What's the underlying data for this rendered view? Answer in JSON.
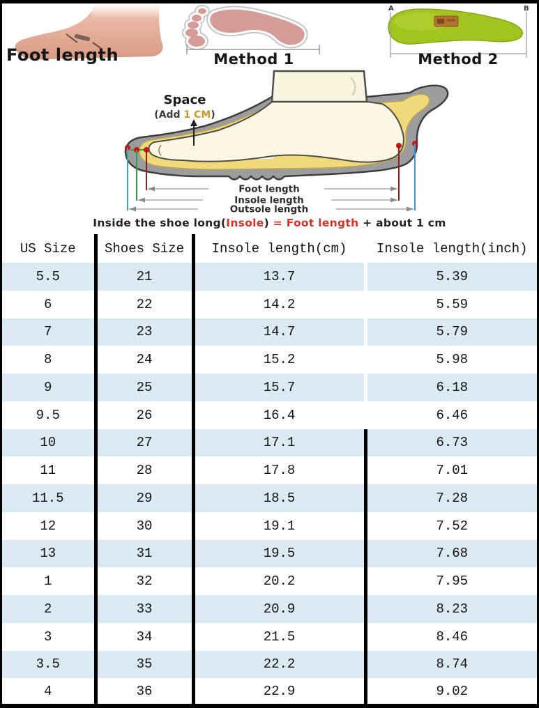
{
  "header_panels": {
    "foot_photo": {
      "label": "Foot length"
    },
    "method1": {
      "label": "Method 1"
    },
    "method2": {
      "label": "Method 2",
      "marker_a": "A",
      "marker_b": "B"
    }
  },
  "diagram": {
    "space_label": "Space",
    "space_note_prefix": "(Add ",
    "space_note_value": "1 CM",
    "space_note_suffix": ")",
    "measure_labels": [
      "Foot length",
      "Insole length",
      "Outsole length"
    ],
    "colors": {
      "shoe_gray": "#9c9c9c",
      "insole_yellow": "#f0d97b",
      "foot_cream": "#fbf7e2",
      "marker_red": "#cc1515",
      "outsole_line_left": "#2fb0ad",
      "insole_line_left": "#2f9e44",
      "foot_line_red": "#8f1d1d",
      "outsole_line_right": "#4a8fd0",
      "note_gold": "#c8962e"
    }
  },
  "equation": {
    "part1": "Inside the shoe long(",
    "red1": "Insole",
    "part2": ") ",
    "red2": "=",
    "part3": " ",
    "red3": "Foot length",
    "part4": " + about 1 cm"
  },
  "table": {
    "headers": [
      "US Size",
      "Shoes Size",
      "Insole length(cm)",
      "Insole length(inch)"
    ],
    "rows": [
      [
        "5.5",
        "21",
        "13.7",
        "5.39"
      ],
      [
        "6",
        "22",
        "14.2",
        "5.59"
      ],
      [
        "7",
        "23",
        "14.7",
        "5.79"
      ],
      [
        "8",
        "24",
        "15.2",
        "5.98"
      ],
      [
        "9",
        "25",
        "15.7",
        "6.18"
      ],
      [
        "9.5",
        "26",
        "16.4",
        "6.46"
      ],
      [
        "10",
        "27",
        "17.1",
        "6.73"
      ],
      [
        "11",
        "28",
        "17.8",
        "7.01"
      ],
      [
        "11.5",
        "29",
        "18.5",
        "7.28"
      ],
      [
        "12",
        "30",
        "19.1",
        "7.52"
      ],
      [
        "13",
        "31",
        "19.5",
        "7.68"
      ],
      [
        "1",
        "32",
        "20.2",
        "7.95"
      ],
      [
        "2",
        "33",
        "20.9",
        "8.23"
      ],
      [
        "3",
        "34",
        "21.5",
        "8.46"
      ],
      [
        "3.5",
        "35",
        "22.2",
        "8.74"
      ],
      [
        "4",
        "36",
        "22.9",
        "9.02"
      ]
    ],
    "divider_switch_row": 6,
    "row_alt_color": "#dbe9f2"
  }
}
